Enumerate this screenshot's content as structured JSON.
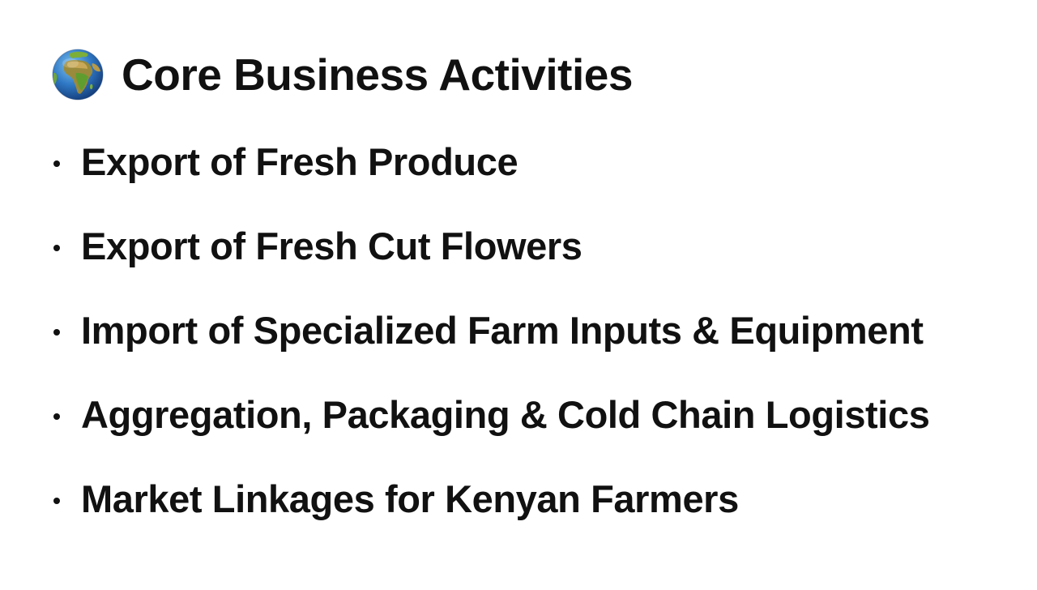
{
  "heading": {
    "icon": "globe-africa-icon",
    "title": "Core Business Activities"
  },
  "activities": [
    "Export of Fresh Produce",
    "Export of Fresh Cut Flowers",
    "Import of Specialized Farm Inputs & Equipment",
    "Aggregation, Packaging & Cold Chain Logistics",
    "Market Linkages for Kenyan Farmers"
  ]
}
